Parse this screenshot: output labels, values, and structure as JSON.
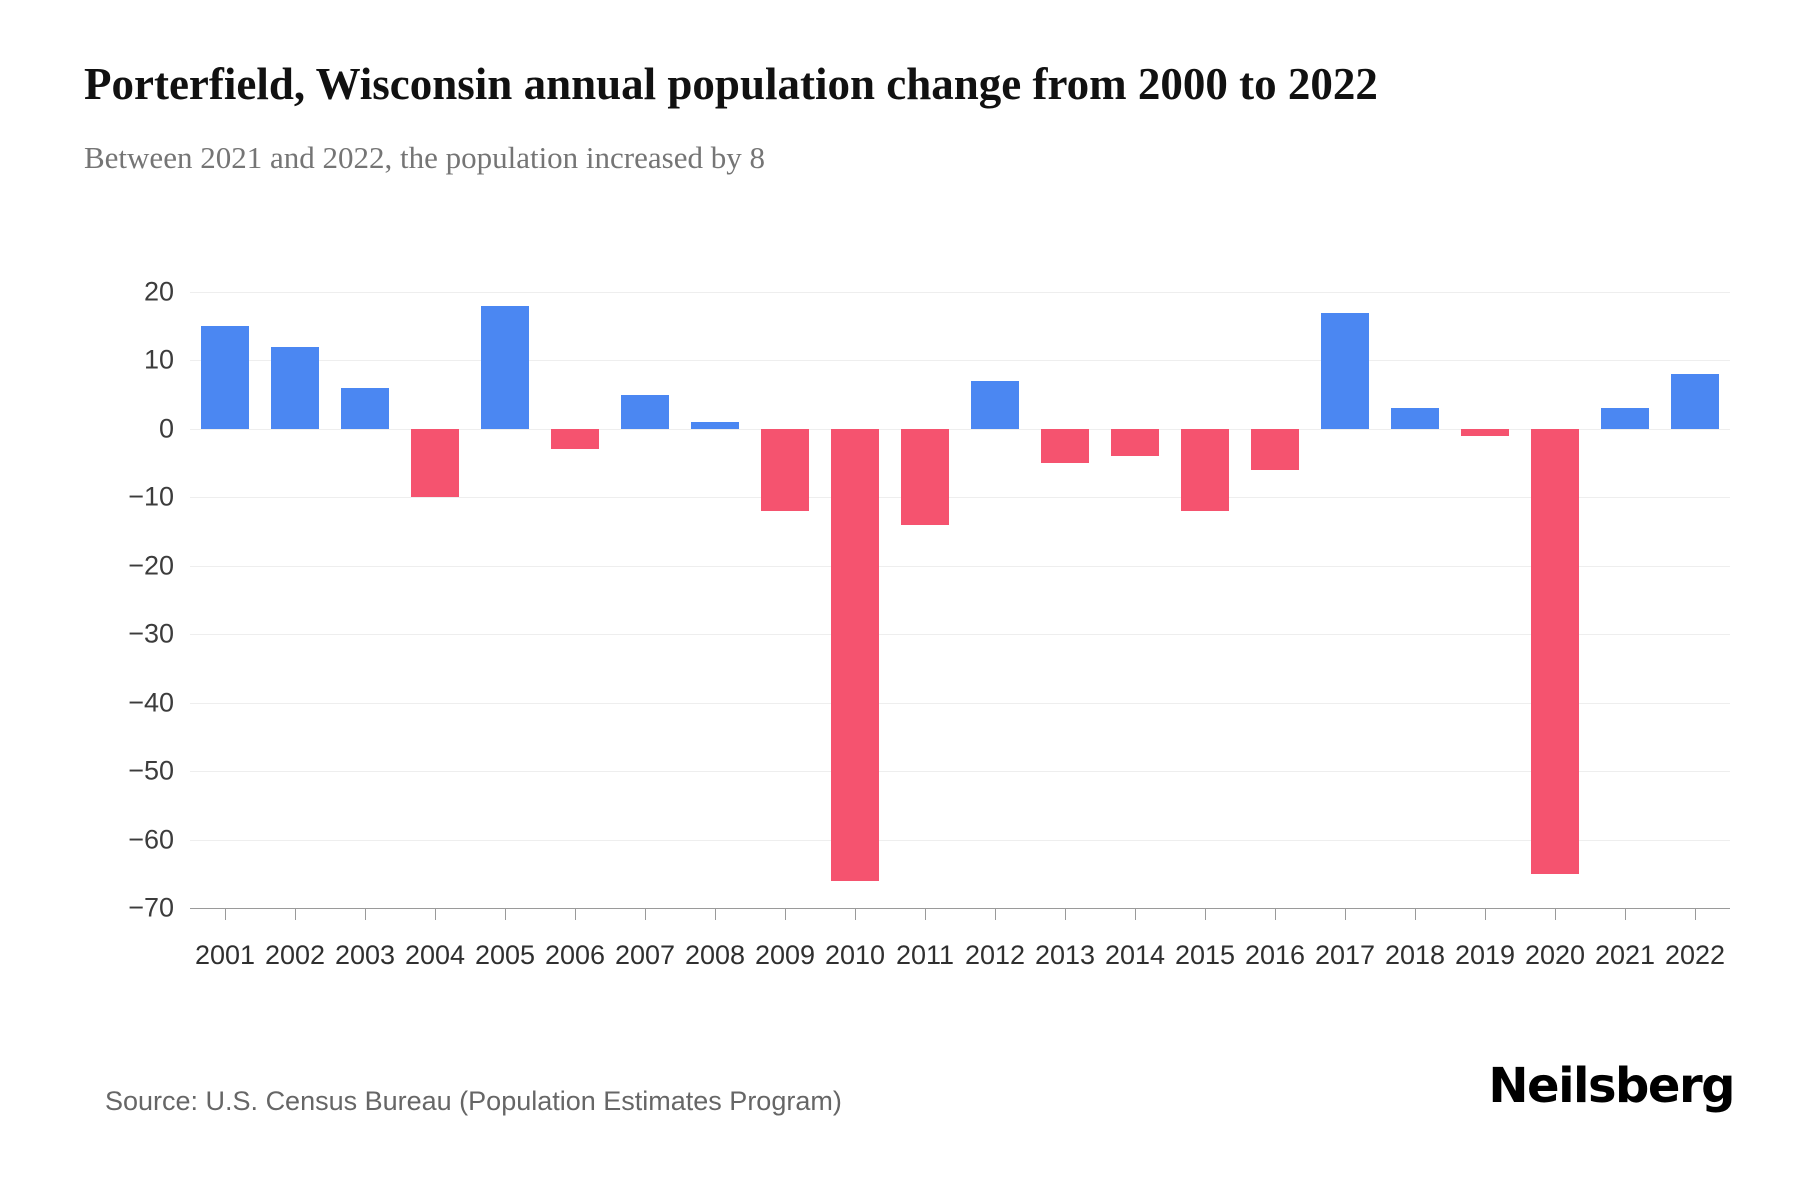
{
  "header": {
    "title": "Porterfield, Wisconsin annual population change from 2000 to 2022",
    "subtitle": "Between 2021 and 2022, the population increased by 8"
  },
  "footer": {
    "source": "Source: U.S. Census Bureau (Population Estimates Program)",
    "brand": "Neilsberg"
  },
  "chart_data": {
    "type": "bar",
    "title": "Porterfield, Wisconsin annual population change from 2000 to 2022",
    "xlabel": "",
    "ylabel": "",
    "categories": [
      "2001",
      "2002",
      "2003",
      "2004",
      "2005",
      "2006",
      "2007",
      "2008",
      "2009",
      "2010",
      "2011",
      "2012",
      "2013",
      "2014",
      "2015",
      "2016",
      "2017",
      "2018",
      "2019",
      "2020",
      "2021",
      "2022"
    ],
    "values": [
      15,
      12,
      6,
      -10,
      18,
      -3,
      5,
      1,
      -12,
      -66,
      -14,
      7,
      -5,
      -4,
      -12,
      -6,
      17,
      3,
      -1,
      -65,
      3,
      8
    ],
    "ylim": [
      -70,
      20
    ],
    "yticks": [
      20,
      10,
      0,
      -10,
      -20,
      -30,
      -40,
      -50,
      -60,
      -70
    ],
    "grid": true,
    "legend": false,
    "colors": {
      "positive": "#4b87f2",
      "negative": "#f5536f"
    }
  }
}
